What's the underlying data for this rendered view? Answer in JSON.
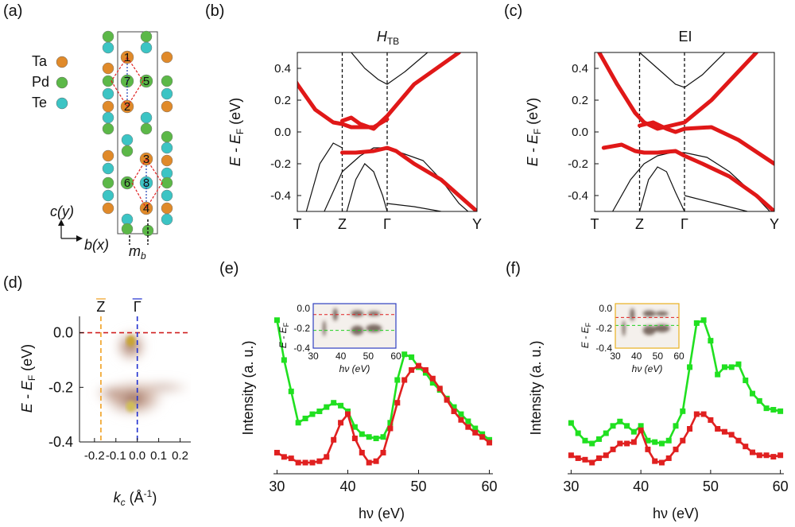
{
  "panels": {
    "a": {
      "label": "(a)",
      "legend": [
        {
          "name": "Ta",
          "color": "#e08a2a"
        },
        {
          "name": "Pd",
          "color": "#5cb848"
        },
        {
          "name": "Te",
          "color": "#3cc4c4"
        }
      ],
      "site_numbers": [
        "1",
        "7",
        "5",
        "2",
        "3",
        "6",
        "8",
        "4"
      ],
      "axis_up": "c(y)",
      "axis_right": "b(x)",
      "mirror_label": "m",
      "mirror_sub": "b"
    }
  },
  "chart_data": [
    {
      "id": "b",
      "type": "line",
      "panel_label": "(b)",
      "title": "H",
      "title_sub": "TB",
      "ylabel": "E - E",
      "ylabel_sub": "F",
      "ylabel_unit": " (eV)",
      "ylim": [
        -0.5,
        0.5
      ],
      "yticks": [
        "0.4",
        "0.2",
        "0.0",
        "-0.2",
        "-0.4"
      ],
      "kpoints": [
        "T",
        "Z",
        "Γ",
        "Y"
      ],
      "red_bands": [
        [
          [
            -0.2,
            0.5
          ],
          [
            0.0,
            0.3
          ],
          [
            0.2,
            0.14
          ],
          [
            0.4,
            0.06
          ],
          [
            0.5,
            0.05
          ],
          [
            0.6,
            0.03
          ],
          [
            0.7,
            0.03
          ],
          [
            0.85,
            0.03
          ],
          [
            1.0,
            0.08
          ]
        ],
        [
          [
            0.5,
            0.07
          ],
          [
            0.6,
            0.09
          ],
          [
            0.7,
            0.05
          ],
          [
            0.85,
            0.02
          ],
          [
            1.0,
            0.1
          ],
          [
            1.3,
            0.3
          ],
          [
            1.8,
            0.5
          ]
        ],
        [
          [
            0.5,
            -0.13
          ],
          [
            0.65,
            -0.13
          ],
          [
            0.85,
            -0.12
          ],
          [
            1.0,
            -0.1
          ],
          [
            1.1,
            -0.12
          ],
          [
            1.3,
            -0.2
          ],
          [
            1.6,
            -0.3
          ],
          [
            1.9,
            -0.45
          ],
          [
            2.0,
            -0.5
          ]
        ]
      ],
      "black_bands": [
        [
          [
            0.6,
            0.5
          ],
          [
            0.75,
            0.4
          ],
          [
            0.9,
            0.33
          ],
          [
            1.0,
            0.3
          ],
          [
            1.2,
            0.38
          ],
          [
            1.45,
            0.5
          ]
        ],
        [
          [
            0.3,
            -0.5
          ],
          [
            0.5,
            -0.25
          ],
          [
            0.6,
            -0.2
          ],
          [
            0.7,
            -0.15
          ],
          [
            0.85,
            -0.1
          ],
          [
            1.0,
            -0.1
          ],
          [
            1.2,
            -0.14
          ],
          [
            1.4,
            -0.18
          ],
          [
            1.6,
            -0.3
          ],
          [
            1.8,
            -0.45
          ],
          [
            1.9,
            -0.5
          ]
        ],
        [
          [
            0.1,
            -0.5
          ],
          [
            0.25,
            -0.2
          ],
          [
            0.4,
            -0.07
          ],
          [
            0.5,
            -0.1
          ]
        ],
        [
          [
            0.55,
            -0.5
          ],
          [
            0.65,
            -0.3
          ],
          [
            0.75,
            -0.2
          ],
          [
            0.85,
            -0.25
          ],
          [
            0.95,
            -0.4
          ],
          [
            1.0,
            -0.5
          ]
        ],
        [
          [
            1.0,
            -0.45
          ],
          [
            1.3,
            -0.47
          ],
          [
            1.6,
            -0.5
          ]
        ]
      ]
    },
    {
      "id": "c",
      "type": "line",
      "panel_label": "(c)",
      "title": "EI",
      "title_sub": "",
      "ylabel": "E - E",
      "ylabel_sub": "F",
      "ylabel_unit": " (eV)",
      "ylim": [
        -0.5,
        0.5
      ],
      "yticks": [
        "0.4",
        "0.2",
        "0.0",
        "-0.2",
        "-0.4"
      ],
      "kpoints": [
        "T",
        "Z",
        "Γ",
        "Y"
      ],
      "red_bands": [
        [
          [
            0.05,
            0.5
          ],
          [
            0.25,
            0.3
          ],
          [
            0.45,
            0.12
          ],
          [
            0.55,
            0.06
          ],
          [
            0.7,
            0.02
          ],
          [
            0.85,
            0.04
          ],
          [
            1.0,
            0.06
          ],
          [
            1.3,
            0.2
          ],
          [
            1.8,
            0.5
          ]
        ],
        [
          [
            0.5,
            0.04
          ],
          [
            0.65,
            0.06
          ],
          [
            0.8,
            0.02
          ],
          [
            0.9,
            0.0
          ],
          [
            1.0,
            0.02
          ],
          [
            1.3,
            0.03
          ],
          [
            1.6,
            -0.05
          ],
          [
            2.0,
            -0.2
          ]
        ],
        [
          [
            0.1,
            -0.1
          ],
          [
            0.3,
            -0.08
          ],
          [
            0.45,
            -0.12
          ],
          [
            0.55,
            -0.13
          ],
          [
            0.7,
            -0.13
          ],
          [
            0.9,
            -0.12
          ],
          [
            1.0,
            -0.15
          ],
          [
            1.2,
            -0.2
          ],
          [
            1.5,
            -0.28
          ],
          [
            1.8,
            -0.4
          ],
          [
            2.0,
            -0.5
          ]
        ]
      ],
      "black_bands": [
        [
          [
            0.5,
            0.5
          ],
          [
            0.7,
            0.4
          ],
          [
            0.9,
            0.3
          ],
          [
            1.0,
            0.28
          ],
          [
            1.2,
            0.36
          ],
          [
            1.45,
            0.5
          ]
        ],
        [
          [
            0.2,
            -0.5
          ],
          [
            0.4,
            -0.3
          ],
          [
            0.55,
            -0.2
          ],
          [
            0.7,
            -0.15
          ],
          [
            0.85,
            -0.13
          ],
          [
            1.0,
            -0.13
          ],
          [
            1.25,
            -0.16
          ],
          [
            1.5,
            -0.25
          ],
          [
            1.75,
            -0.38
          ],
          [
            1.95,
            -0.5
          ]
        ],
        [
          [
            0.5,
            -0.5
          ],
          [
            0.6,
            -0.3
          ],
          [
            0.7,
            -0.22
          ],
          [
            0.8,
            -0.25
          ],
          [
            0.9,
            -0.38
          ],
          [
            1.0,
            -0.5
          ]
        ],
        [
          [
            1.0,
            -0.4
          ],
          [
            1.35,
            -0.45
          ],
          [
            1.7,
            -0.5
          ]
        ]
      ]
    },
    {
      "id": "d",
      "type": "heatmap",
      "panel_label": "(d)",
      "ylabel": "E - E",
      "ylabel_sub": "F",
      "ylabel_unit": " (eV)",
      "xlabel": "k",
      "xlabel_sub": "c",
      "xlabel_unit": " (Å",
      "xlabel_exp": "-1",
      "xlabel_close": ")",
      "xlim": [
        -0.27,
        0.25
      ],
      "ylim": [
        -0.4,
        0.06
      ],
      "xticks": [
        "-0.2",
        "-0.1",
        "0.0",
        "0.1",
        "0.2"
      ],
      "yticks": [
        "0.0",
        "-0.2",
        "-0.4"
      ],
      "markers": [
        {
          "label": "Z",
          "x": -0.17,
          "color": "#f0a020"
        },
        {
          "label": "Γ",
          "x": 0.0,
          "color": "#2030d0"
        }
      ],
      "fermi_line_color": "#d02020",
      "intensity_spots": [
        {
          "x": -0.03,
          "y": -0.03,
          "color": "#c8a428"
        },
        {
          "x": -0.03,
          "y": -0.27,
          "color": "#d0c050"
        }
      ]
    },
    {
      "id": "e",
      "type": "line",
      "panel_label": "(e)",
      "ylabel": "Intensity (a. u.)",
      "xlabel": "hν (eV)",
      "xlim": [
        29.5,
        60.5
      ],
      "xticks": [
        "30",
        "40",
        "50",
        "60"
      ],
      "series": [
        {
          "color": "#20e020",
          "x": [
            30,
            31,
            32,
            33,
            34,
            35,
            36,
            37,
            38,
            39,
            40,
            41,
            42,
            43,
            44,
            45,
            46,
            47,
            48,
            49,
            50,
            51,
            52,
            53,
            54,
            55,
            56,
            57,
            58,
            59,
            60
          ],
          "y": [
            1.0,
            0.72,
            0.5,
            0.28,
            0.31,
            0.34,
            0.36,
            0.39,
            0.42,
            0.4,
            0.36,
            0.25,
            0.2,
            0.18,
            0.17,
            0.18,
            0.28,
            0.58,
            0.76,
            0.74,
            0.67,
            0.63,
            0.56,
            0.51,
            0.45,
            0.39,
            0.34,
            0.29,
            0.24,
            0.2,
            0.16
          ]
        },
        {
          "color": "#e02020",
          "x": [
            30,
            31,
            32,
            33,
            34,
            35,
            36,
            37,
            38,
            39,
            40,
            41,
            42,
            43,
            44,
            45,
            46,
            47,
            48,
            49,
            50,
            51,
            52,
            53,
            54,
            55,
            56,
            57,
            58,
            59,
            60
          ],
          "y": [
            0.07,
            0.04,
            0.03,
            0.0,
            0.0,
            0.0,
            0.01,
            0.04,
            0.16,
            0.28,
            0.34,
            0.17,
            0.07,
            0.0,
            0.01,
            0.07,
            0.24,
            0.42,
            0.58,
            0.65,
            0.68,
            0.65,
            0.59,
            0.52,
            0.44,
            0.36,
            0.3,
            0.25,
            0.21,
            0.18,
            0.14
          ]
        }
      ],
      "inset": {
        "border_color": "#3040c0",
        "ylabel": "E - E",
        "ylabel_sub": "F",
        "xlabel": "hν (eV)",
        "xticks": [
          "30",
          "40",
          "50",
          "60"
        ],
        "yticks": [
          "0.0",
          "-0.2",
          "-0.4"
        ],
        "xlim": [
          30,
          60
        ],
        "ylim": [
          -0.4,
          0.05
        ],
        "lines": [
          {
            "y": -0.06,
            "color": "#e02020"
          },
          {
            "y": -0.22,
            "color": "#20d020"
          }
        ]
      }
    },
    {
      "id": "f",
      "type": "line",
      "panel_label": "(f)",
      "ylabel": "Intensity (a. u.)",
      "xlabel": "hν (eV)",
      "xlim": [
        29.5,
        60.5
      ],
      "xticks": [
        "30",
        "40",
        "50",
        "60"
      ],
      "series": [
        {
          "color": "#20e020",
          "x": [
            30,
            31,
            32,
            33,
            34,
            35,
            36,
            37,
            38,
            39,
            40,
            41,
            42,
            43,
            44,
            45,
            46,
            47,
            48,
            49,
            50,
            51,
            52,
            53,
            54,
            55,
            56,
            57,
            58,
            59,
            60
          ],
          "y": [
            0.22,
            0.15,
            0.1,
            0.08,
            0.11,
            0.15,
            0.2,
            0.23,
            0.2,
            0.16,
            0.2,
            0.1,
            0.09,
            0.08,
            0.1,
            0.2,
            0.3,
            0.6,
            0.9,
            0.92,
            0.78,
            0.55,
            0.6,
            0.6,
            0.62,
            0.51,
            0.42,
            0.37,
            0.32,
            0.31,
            0.3
          ]
        },
        {
          "color": "#e02020",
          "x": [
            30,
            31,
            32,
            33,
            34,
            35,
            36,
            37,
            38,
            39,
            40,
            41,
            42,
            43,
            44,
            45,
            46,
            47,
            48,
            49,
            50,
            51,
            52,
            53,
            54,
            55,
            56,
            57,
            58,
            59,
            60
          ],
          "y": [
            0.0,
            -0.02,
            -0.03,
            -0.05,
            -0.02,
            0.0,
            0.04,
            0.08,
            0.08,
            0.09,
            0.17,
            0.04,
            -0.04,
            -0.05,
            -0.02,
            0.04,
            0.1,
            0.18,
            0.28,
            0.28,
            0.24,
            0.18,
            0.16,
            0.14,
            0.1,
            0.06,
            0.02,
            0.0,
            0.0,
            -0.01,
            0.0
          ]
        }
      ],
      "inset": {
        "border_color": "#e8b020",
        "ylabel": "E - E",
        "ylabel_sub": "F",
        "xlabel": "hν (eV)",
        "xticks": [
          "30",
          "40",
          "50",
          "60"
        ],
        "yticks": [
          "0.0",
          "-0.2",
          "-0.4"
        ],
        "xlim": [
          30,
          60
        ],
        "ylim": [
          -0.4,
          0.05
        ],
        "lines": [
          {
            "y": -0.09,
            "color": "#e02020"
          },
          {
            "y": -0.17,
            "color": "#20d020"
          }
        ]
      }
    }
  ]
}
